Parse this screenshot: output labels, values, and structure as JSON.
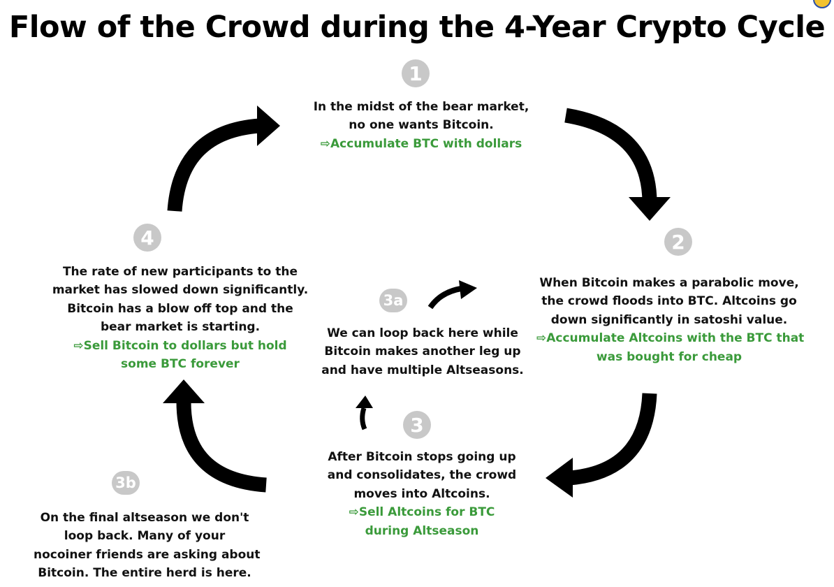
{
  "title": "Flow of the Crowd during the 4-Year Crypto Cycle",
  "steps": [
    {
      "badge": "1",
      "lines": [
        "In the midst of the bear market,",
        "no one wants Bitcoin."
      ],
      "action": [
        "⇨Accumulate BTC with dollars"
      ]
    },
    {
      "badge": "2",
      "lines": [
        "When Bitcoin makes a parabolic move,",
        "the crowd floods into BTC. Altcoins go",
        "down significantly in satoshi value."
      ],
      "action": [
        "⇨Accumulate Altcoins with the BTC that",
        "was bought for cheap"
      ]
    },
    {
      "badge": "3a",
      "lines": [
        "We can loop back here while",
        "Bitcoin makes another leg up",
        "and have multiple Altseasons."
      ],
      "action": []
    },
    {
      "badge": "3",
      "lines": [
        "After Bitcoin stops going up",
        "and consolidates, the crowd",
        "moves into Altcoins."
      ],
      "action": [
        "⇨Sell Altcoins for BTC",
        "during Altseason"
      ]
    },
    {
      "badge": "3b",
      "lines": [
        "On the final altseason we don't",
        "loop back. Many of your",
        "nocoiner friends are asking about",
        "Bitcoin.  The entire herd is here."
      ],
      "action": []
    },
    {
      "badge": "4",
      "lines": [
        "The rate of new participants to the",
        "market has slowed down significantly.",
        "Bitcoin has a blow off top and the",
        "bear market is starting."
      ],
      "action": [
        "⇨Sell Bitcoin to dollars but hold",
        "some BTC forever"
      ]
    }
  ],
  "colors": {
    "action_text": "#3a9a3a",
    "badge": "#c8c8c8",
    "arrow": "#000000"
  }
}
